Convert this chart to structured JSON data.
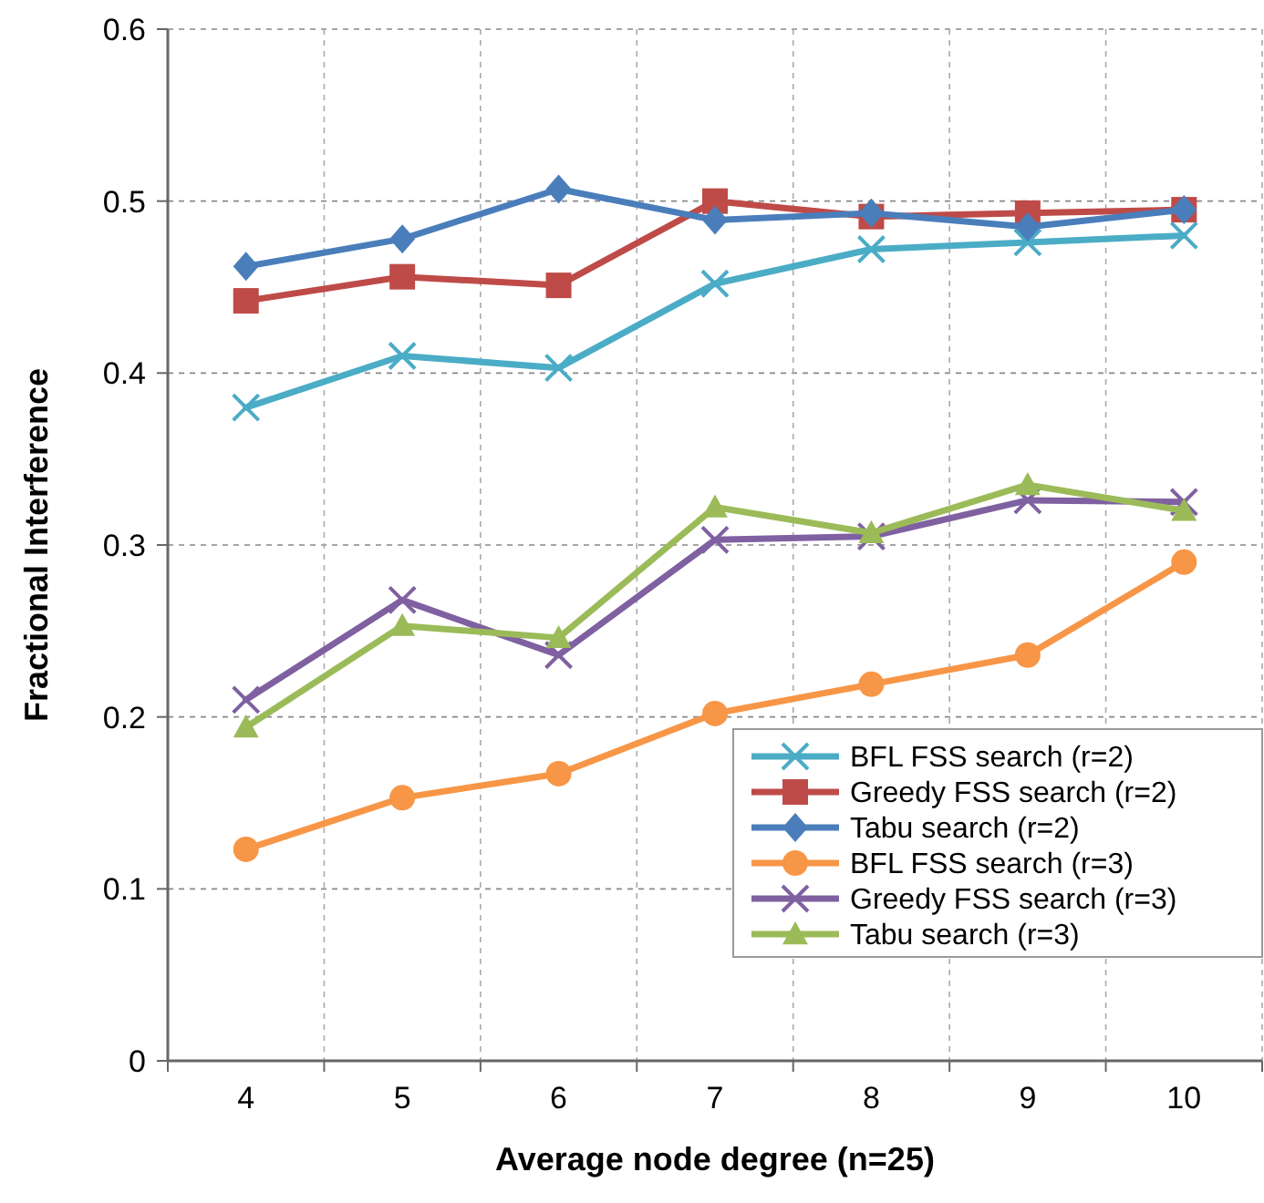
{
  "chart_data": {
    "type": "line",
    "xlabel": "Average  node degree (n=25)",
    "ylabel": "Fractional Interference",
    "categories": [
      "4",
      "5",
      "6",
      "7",
      "8",
      "9",
      "10"
    ],
    "ylim": [
      0,
      0.6
    ],
    "yticks": [
      {
        "value": 0,
        "label": "0"
      },
      {
        "value": 0.1,
        "label": "0.1"
      },
      {
        "value": 0.2,
        "label": "0.2"
      },
      {
        "value": 0.3,
        "label": "0.3"
      },
      {
        "value": 0.4,
        "label": "0.4"
      },
      {
        "value": 0.5,
        "label": "0.5"
      },
      {
        "value": 0.6,
        "label": "0.6"
      }
    ],
    "grid": true,
    "legend": "bottom right",
    "line_style": "solid",
    "series": [
      {
        "name": "BFL FSS search (r=2)",
        "color": "#4bacc6",
        "marker": "cross",
        "values": [
          0.38,
          0.41,
          0.403,
          0.452,
          0.472,
          0.476,
          0.48
        ]
      },
      {
        "name": "Greedy FSS search (r=2)",
        "color": "#be4b48",
        "marker": "square",
        "values": [
          0.442,
          0.456,
          0.451,
          0.5,
          0.491,
          0.493,
          0.495
        ]
      },
      {
        "name": "Tabu search (r=2)",
        "color": "#4a7ebb",
        "marker": "diamond",
        "values": [
          0.462,
          0.478,
          0.507,
          0.489,
          0.493,
          0.485,
          0.495
        ]
      },
      {
        "name": "BFL FSS search (r=3)",
        "color": "#f79646",
        "marker": "circle",
        "values": [
          0.123,
          0.153,
          0.167,
          0.202,
          0.219,
          0.236,
          0.29
        ]
      },
      {
        "name": "Greedy FSS search (r=3)",
        "color": "#7f60a0",
        "marker": "cross",
        "values": [
          0.21,
          0.268,
          0.236,
          0.303,
          0.305,
          0.326,
          0.325
        ]
      },
      {
        "name": "Tabu search (r=3)",
        "color": "#9bbb59",
        "marker": "triangle",
        "values": [
          0.194,
          0.253,
          0.246,
          0.322,
          0.307,
          0.335,
          0.32
        ]
      }
    ]
  }
}
